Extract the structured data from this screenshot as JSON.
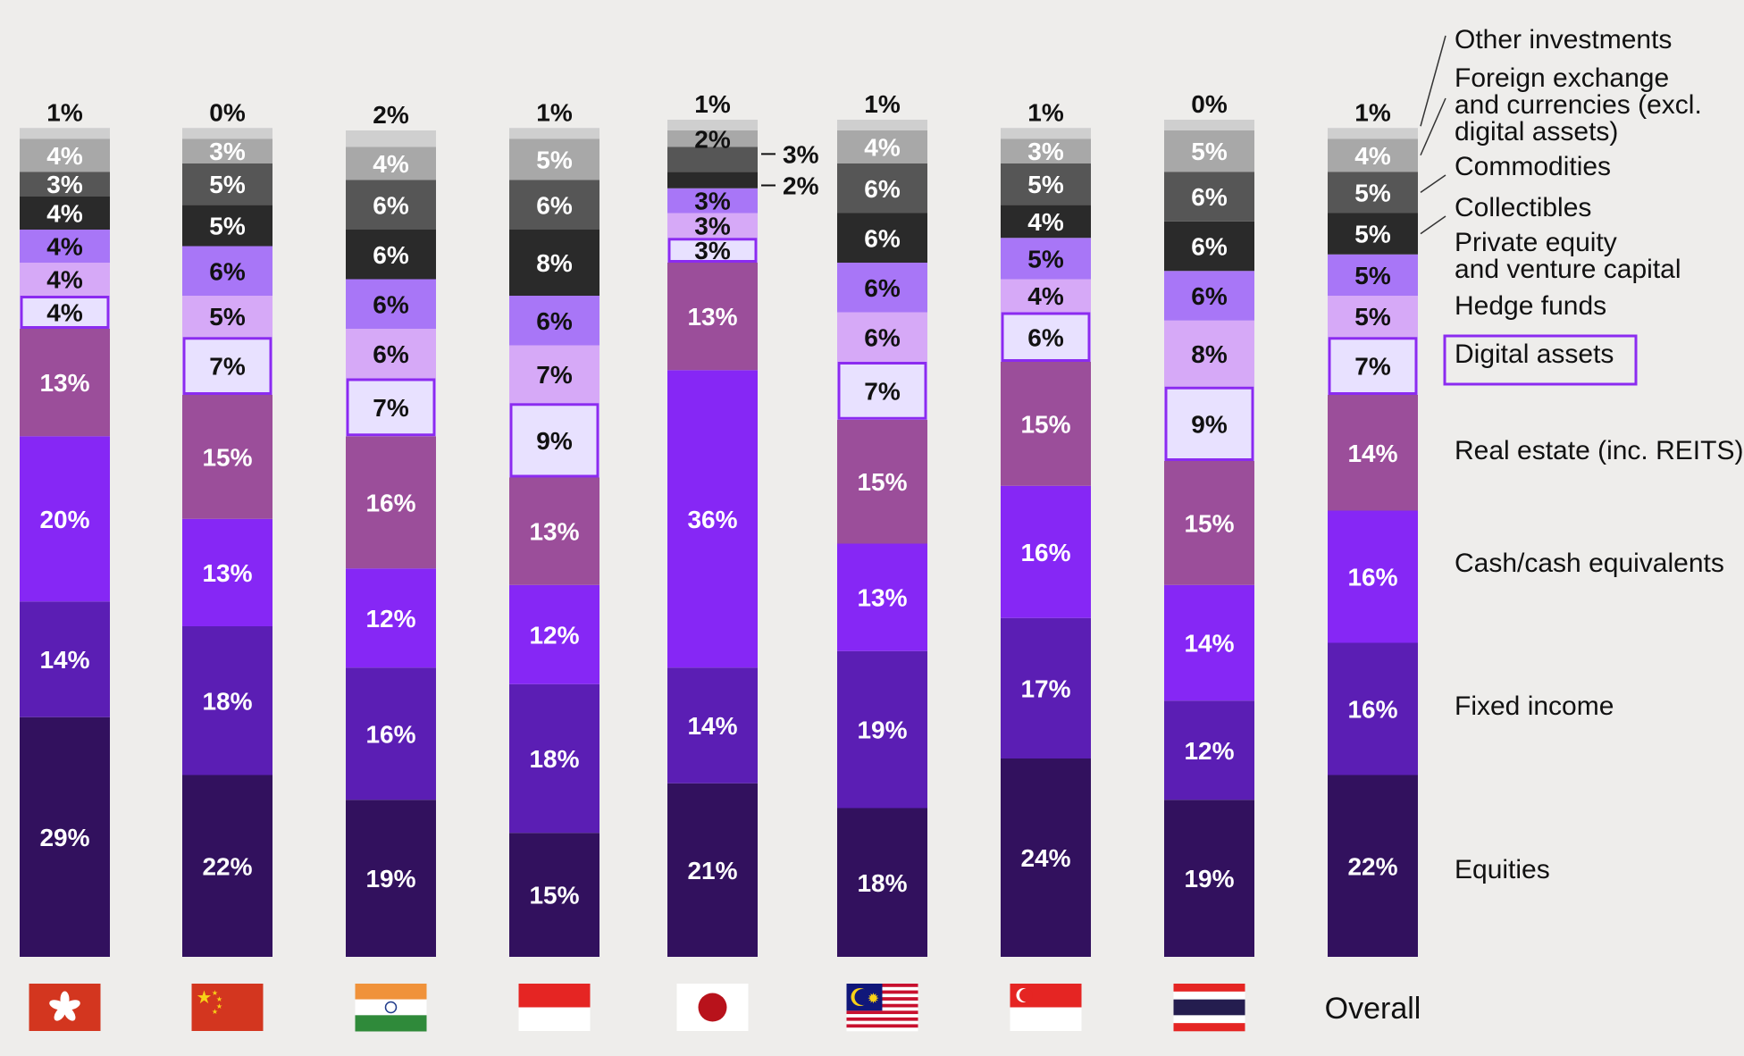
{
  "chart_data": {
    "type": "bar",
    "stacked": true,
    "percent_stacked": true,
    "legend_position": "right",
    "grid": false,
    "categories": [
      "Hong Kong",
      "China",
      "India",
      "Indonesia",
      "Japan",
      "Malaysia",
      "Singapore",
      "Thailand",
      "Overall"
    ],
    "category_icons": [
      "flag-hong-kong",
      "flag-china",
      "flag-india",
      "flag-indonesia",
      "flag-japan",
      "flag-malaysia",
      "flag-singapore",
      "flag-thailand",
      "text"
    ],
    "category_texts": [
      "",
      "",
      "",
      "",
      "",
      "",
      "",
      "",
      "Overall"
    ],
    "series": [
      {
        "name": "Equities",
        "color": "#32115e",
        "values": [
          29,
          22,
          19,
          15,
          21,
          18,
          24,
          19,
          22
        ]
      },
      {
        "name": "Fixed income",
        "color": "#5b1eb4",
        "values": [
          14,
          18,
          16,
          18,
          14,
          19,
          17,
          12,
          16
        ]
      },
      {
        "name": "Cash/cash equivalents",
        "color": "#8627f5",
        "values": [
          20,
          13,
          12,
          12,
          36,
          13,
          16,
          14,
          16
        ]
      },
      {
        "name": "Real estate (inc. REITS)",
        "color": "#9b4e9a",
        "values": [
          13,
          15,
          16,
          13,
          13,
          15,
          15,
          15,
          14
        ]
      },
      {
        "name": "Digital assets",
        "color": "#e8e1ff",
        "values": [
          4,
          7,
          7,
          9,
          3,
          7,
          6,
          9,
          7
        ],
        "highlighted": true,
        "border_color": "#8b2bf0"
      },
      {
        "name": "Hedge funds",
        "color": "#d6a9f7",
        "values": [
          4,
          5,
          6,
          7,
          3,
          6,
          4,
          8,
          5
        ]
      },
      {
        "name": "Private equity and venture capital",
        "color": "#a876f7",
        "values": [
          4,
          6,
          6,
          6,
          3,
          6,
          5,
          6,
          5
        ]
      },
      {
        "name": "Collectibles",
        "color": "#2a2a2a",
        "values": [
          4,
          5,
          6,
          8,
          2,
          6,
          4,
          6,
          5
        ]
      },
      {
        "name": "Commodities",
        "color": "#565656",
        "values": [
          3,
          5,
          6,
          6,
          3,
          6,
          5,
          6,
          5
        ]
      },
      {
        "name": "Foreign exchange and currencies (excl. digital assets)",
        "color": "#a8a8a8",
        "values": [
          4,
          3,
          4,
          5,
          2,
          4,
          3,
          5,
          4
        ]
      },
      {
        "name": "Other investments",
        "color": "#cfcfcf",
        "values": [
          1,
          0,
          2,
          1,
          1,
          1,
          1,
          0,
          1
        ]
      }
    ],
    "legend_lines": [
      [
        "Other investments"
      ],
      [
        "Foreign exchange",
        "and currencies (excl.",
        "digital assets)"
      ],
      [
        "Commodities"
      ],
      [
        "Collectibles"
      ],
      [
        "Private equity",
        "and venture capital"
      ],
      [
        "Hedge funds"
      ],
      [
        "Digital assets"
      ],
      [
        "Real estate (inc. REITS)"
      ],
      [
        "Cash/cash equivalents"
      ],
      [
        "Fixed income"
      ],
      [
        "Equities"
      ]
    ],
    "xlabel": "",
    "ylabel": "",
    "ylim": [
      0,
      100
    ]
  }
}
